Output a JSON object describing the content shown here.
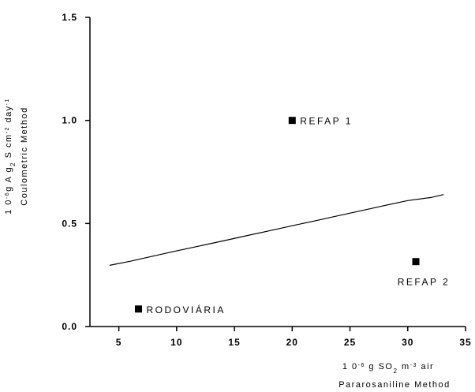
{
  "chart_data": {
    "type": "scatter",
    "xlabel": {
      "line1_parts": [
        {
          "text": "1 0",
          "style": "normal"
        },
        {
          "text": "-6",
          "style": "sup"
        },
        {
          "text": " g  SO",
          "style": "normal"
        },
        {
          "text": "2",
          "style": "sub"
        },
        {
          "text": " m",
          "style": "normal"
        },
        {
          "text": "-3",
          "style": "sup"
        },
        {
          "text": " air",
          "style": "normal"
        }
      ],
      "line2": "Pararosaniline Method"
    },
    "ylabel": {
      "line1_parts": [
        {
          "text": "1 0",
          "style": "normal"
        },
        {
          "text": "-6",
          "style": "sup"
        },
        {
          "text": "g  A g",
          "style": "normal"
        },
        {
          "text": "2",
          "style": "sub"
        },
        {
          "text": " S  cm",
          "style": "normal"
        },
        {
          "text": "-2",
          "style": "sup"
        },
        {
          "text": " day",
          "style": "normal"
        },
        {
          "text": "-1",
          "style": "sup"
        }
      ],
      "line2": "Coulometric Method"
    },
    "xlim": [
      2.5,
      35
    ],
    "ylim": [
      0,
      1.5
    ],
    "x_ticks": [
      5,
      10,
      15,
      20,
      25,
      30,
      35
    ],
    "x_tick_labels": [
      "5",
      "10",
      "15",
      "20",
      "25",
      "30",
      "35"
    ],
    "y_ticks": [
      0,
      0.5,
      1.0,
      1.5
    ],
    "y_tick_labels": [
      "0.0",
      "0.5",
      "1.0",
      "1.5"
    ],
    "grid": false,
    "points": [
      {
        "label": "REFAP 1",
        "x": 20.0,
        "y": 1.0,
        "label_side": "right"
      },
      {
        "label": "REFAP 2",
        "x": 30.7,
        "y": 0.315,
        "label_side": "below"
      },
      {
        "label": "RODOVIÁRIA",
        "x": 6.7,
        "y": 0.085,
        "label_side": "right"
      }
    ],
    "line": {
      "x": [
        4.2,
        6,
        8,
        10,
        12,
        14,
        16,
        18,
        20,
        22,
        24,
        26,
        28,
        30,
        32,
        33.1
      ],
      "y": [
        0.297,
        0.317,
        0.342,
        0.367,
        0.391,
        0.415,
        0.44,
        0.464,
        0.489,
        0.513,
        0.538,
        0.562,
        0.587,
        0.611,
        0.626,
        0.64
      ]
    }
  }
}
